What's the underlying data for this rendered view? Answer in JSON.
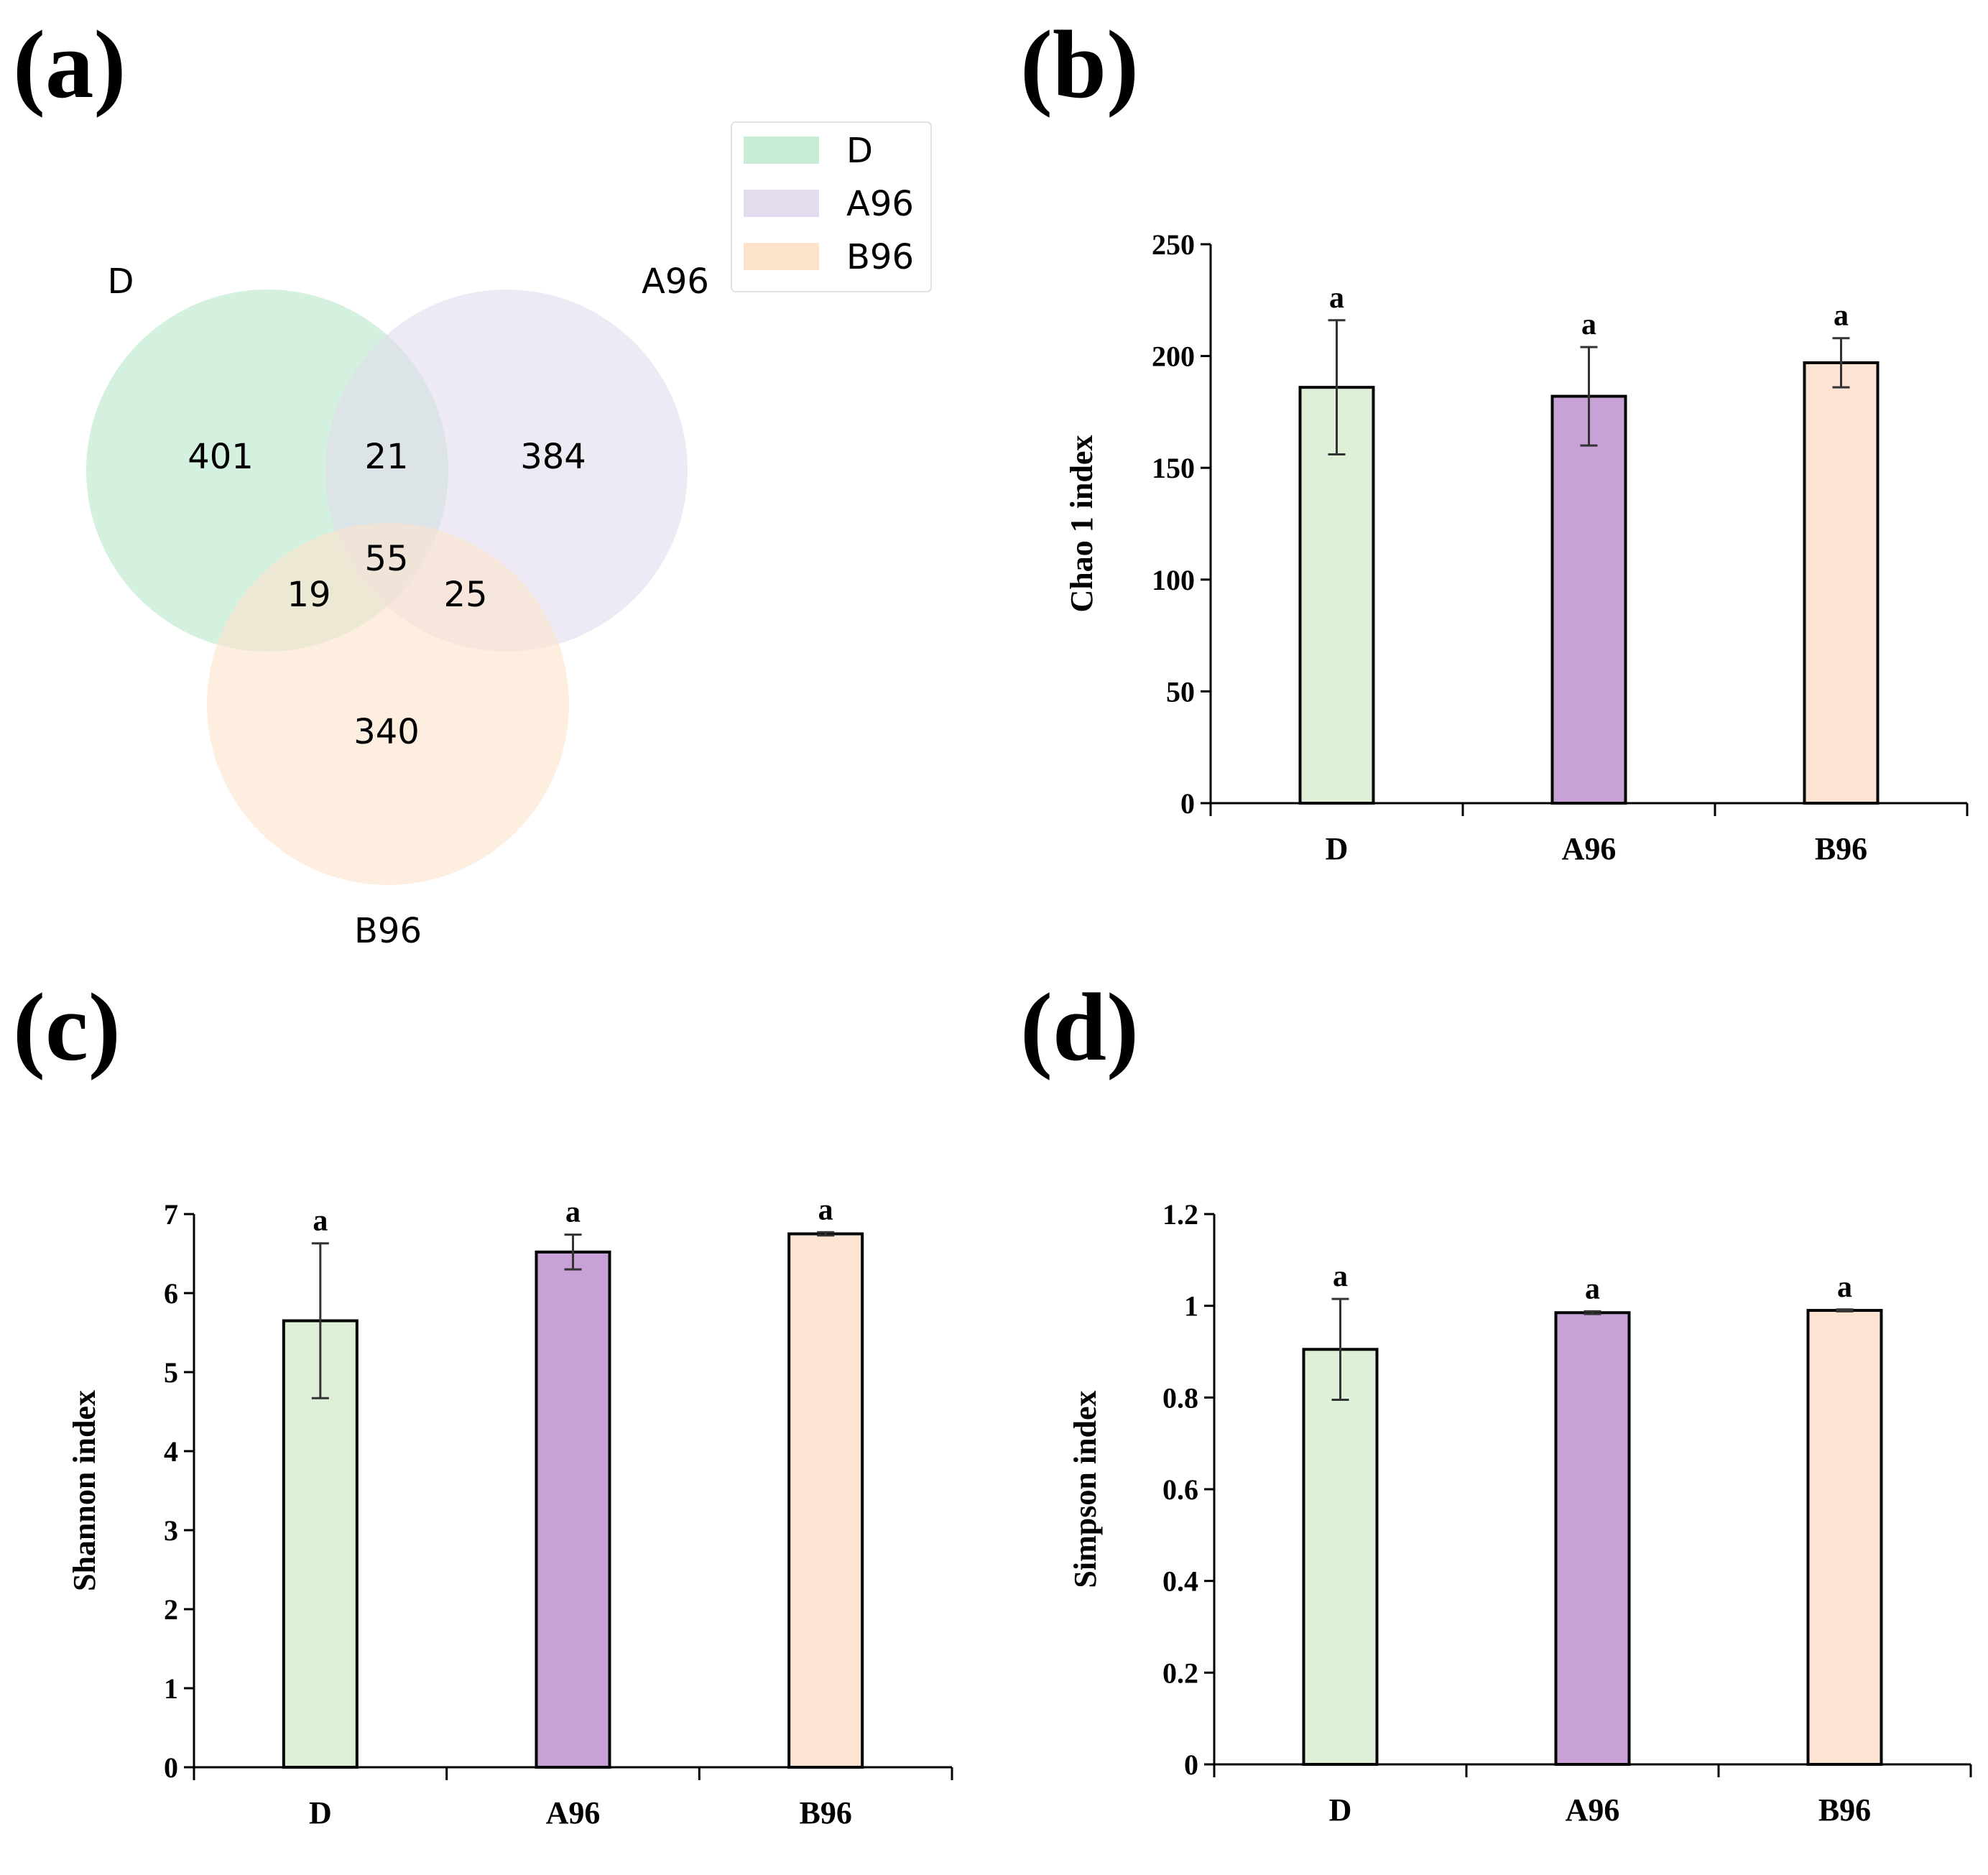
{
  "panels": {
    "a": "(a)",
    "b": "(b)",
    "c": "(c)",
    "d": "(d)"
  },
  "colors": {
    "D_fill": "#c9ecd6",
    "A96_fill": "#e3dcef",
    "B96_fill": "#fde3cc",
    "bar_D": "#dff0d8",
    "bar_A96": "#c8a2d6",
    "bar_B96": "#fde3d2",
    "error": "#333333"
  },
  "chart_data": [
    {
      "type": "venn",
      "sets": [
        "D",
        "A96",
        "B96"
      ],
      "set_labels": {
        "D": "D",
        "A96": "A96",
        "B96": "B96"
      },
      "legend": [
        "D",
        "A96",
        "B96"
      ],
      "regions": {
        "D_only": "401",
        "A96_only": "384",
        "B96_only": "340",
        "D_A96": "21",
        "D_B96": "19",
        "A96_B96": "25",
        "all": "55"
      }
    },
    {
      "type": "bar",
      "panel": "b",
      "categories": [
        "D",
        "A96",
        "B96"
      ],
      "values": [
        186,
        182,
        197
      ],
      "errors": [
        30,
        22,
        11
      ],
      "significance": [
        "a",
        "a",
        "a"
      ],
      "ylabel": "Chao 1 index",
      "ylim": [
        0,
        250
      ],
      "yticks": [
        "0",
        "50",
        "100",
        "150",
        "200",
        "250"
      ]
    },
    {
      "type": "bar",
      "panel": "c",
      "categories": [
        "D",
        "A96",
        "B96"
      ],
      "values": [
        5.65,
        6.52,
        6.75
      ],
      "errors": [
        0.98,
        0.22,
        0.02
      ],
      "significance": [
        "a",
        "a",
        "a"
      ],
      "ylabel": "Shannon index",
      "ylim": [
        0,
        7
      ],
      "yticks": [
        "0",
        "1",
        "2",
        "3",
        "4",
        "5",
        "6",
        "7"
      ]
    },
    {
      "type": "bar",
      "panel": "d",
      "categories": [
        "D",
        "A96",
        "B96"
      ],
      "values": [
        0.905,
        0.985,
        0.99
      ],
      "errors": [
        0.11,
        0.003,
        0.002
      ],
      "significance": [
        "a",
        "a",
        "a"
      ],
      "ylabel": "Simpson index",
      "ylim": [
        0,
        1.2
      ],
      "yticks": [
        "0",
        "0.2",
        "0.4",
        "0.6",
        "0.8",
        "1",
        "1.2"
      ]
    }
  ]
}
